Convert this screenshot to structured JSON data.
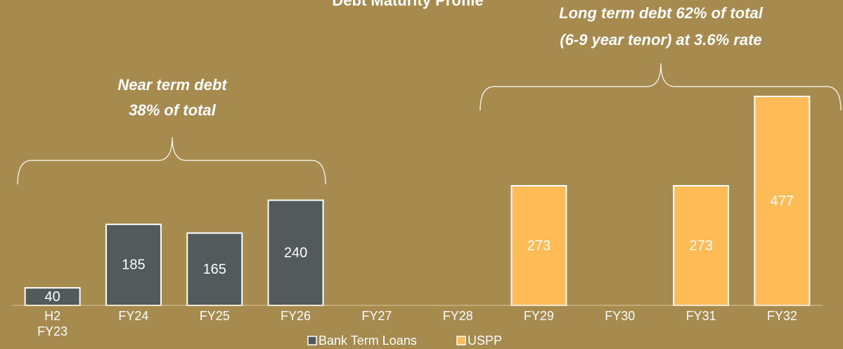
{
  "chart_data": {
    "type": "stacked_bar",
    "title": "Debt Maturity Profile",
    "categories": [
      "H2 FY23",
      "FY24",
      "FY25",
      "FY26",
      "FY27",
      "FY28",
      "FY29",
      "FY30",
      "FY31",
      "FY32"
    ],
    "series": [
      {
        "name": "Bank Term Loans",
        "color": "#525a5c",
        "values": [
          40,
          185,
          165,
          240,
          null,
          null,
          null,
          null,
          null,
          null
        ]
      },
      {
        "name": "USPP",
        "color": "#ffbb55",
        "values": [
          null,
          null,
          null,
          null,
          null,
          null,
          273,
          null,
          273,
          477
        ]
      }
    ],
    "annotations": [
      {
        "lines": [
          "Near term debt",
          "38% of total"
        ]
      },
      {
        "lines": [
          "Long term debt 62% of total",
          "(6-9 year tenor) at 3.6% rate"
        ]
      }
    ],
    "legend": "bottom"
  }
}
